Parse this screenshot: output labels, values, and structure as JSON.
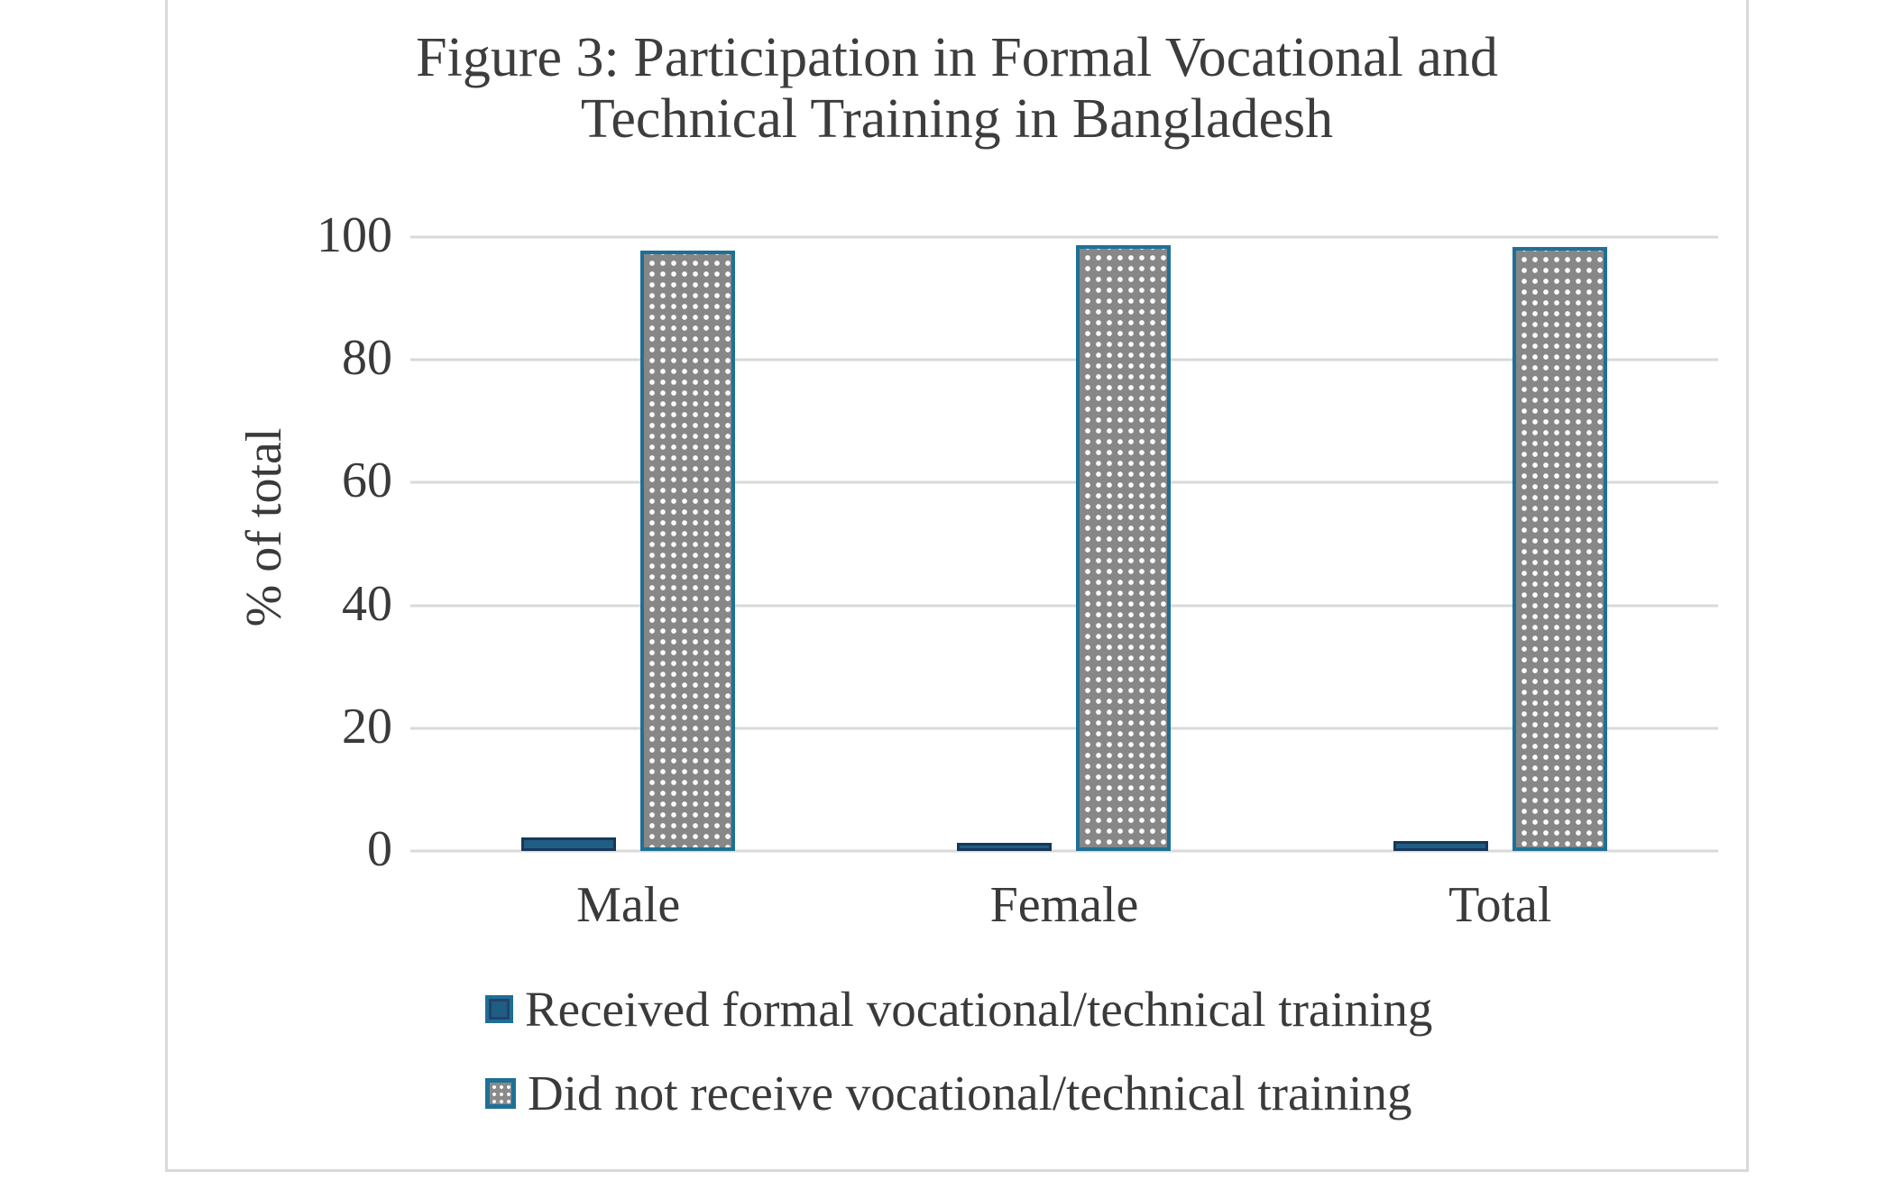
{
  "chart_data": {
    "type": "bar",
    "title": "Figure 3: Participation in Formal Vocational and Technical Training in Bangladesh",
    "title_lines": [
      "Figure 3: Participation in Formal Vocational and",
      "Technical Training in Bangladesh"
    ],
    "categories": [
      "Male",
      "Female",
      "Total"
    ],
    "series": [
      {
        "name": "Received formal vocational/technical training",
        "values": [
          2.2,
          1.3,
          1.6
        ],
        "style": "solid",
        "fill_color": "#1f5e82",
        "border_color": "#17375b"
      },
      {
        "name": "Did not receive vocational/technical training",
        "values": [
          97.8,
          98.7,
          98.4
        ],
        "style": "dotted-pattern",
        "fill_color": "#878787",
        "pattern_dot_color": "#ffffff",
        "border_color": "#1f7096"
      }
    ],
    "xlabel": "",
    "ylabel": "% of total",
    "ylim": [
      0,
      100
    ],
    "yticks": [
      0,
      20,
      40,
      60,
      80,
      100
    ],
    "grid": true,
    "gridline_color": "#d9d9d9",
    "legend_position": "bottom-left",
    "text_color": "#3a3a3a",
    "frame_border_color": "#d9d9d9"
  }
}
